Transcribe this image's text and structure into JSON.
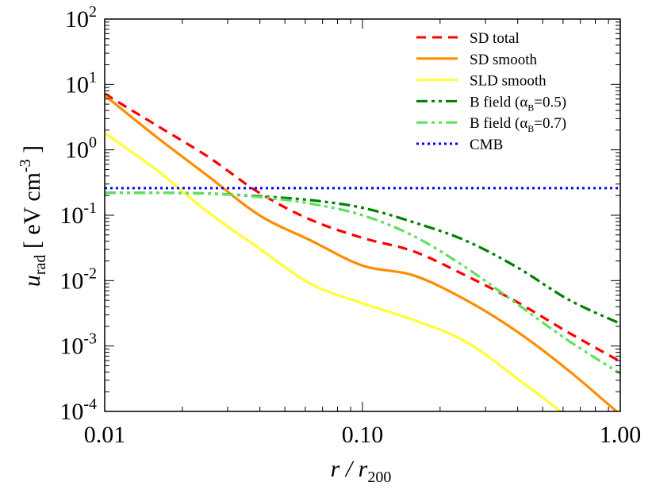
{
  "chart_data": {
    "type": "line",
    "xlabel": {
      "main": "r / r",
      "sub": "200"
    },
    "ylabel": {
      "main": "u",
      "sub": "rad",
      "rest": " [ eV cm",
      "sup": "-3",
      "end": " ]"
    },
    "xscale": "log",
    "yscale": "log",
    "xlim": [
      0.01,
      1.0
    ],
    "ylim": [
      0.0001,
      100
    ],
    "grid": false,
    "legend_position": "top-right",
    "x_tick_labels": [
      "0.01",
      "0.10",
      "1.00"
    ],
    "x_ticks": [
      0.01,
      0.1,
      1.0
    ],
    "y_ticks": [
      {
        "value": 100,
        "base": "10",
        "exp": "2"
      },
      {
        "value": 10,
        "base": "10",
        "exp": "1"
      },
      {
        "value": 1,
        "base": "10",
        "exp": "0"
      },
      {
        "value": 0.1,
        "base": "10",
        "exp": "-1"
      },
      {
        "value": 0.01,
        "base": "10",
        "exp": "-2"
      },
      {
        "value": 0.001,
        "base": "10",
        "exp": "-3"
      },
      {
        "value": 0.0001,
        "base": "10",
        "exp": "-4"
      }
    ],
    "x": [
      0.01,
      0.0158,
      0.0251,
      0.0398,
      0.0631,
      0.1,
      0.158,
      0.251,
      0.398,
      0.631,
      1.0
    ],
    "series": [
      {
        "name": "SD total",
        "label": {
          "pre": "SD total"
        },
        "color": "#ff0000",
        "style": "dashed",
        "values": [
          7.2,
          2.4,
          0.79,
          0.22,
          0.085,
          0.045,
          0.028,
          0.012,
          0.0047,
          0.0016,
          0.00058
        ]
      },
      {
        "name": "SD smooth",
        "label": {
          "pre": "SD smooth"
        },
        "color": "#ff8c00",
        "style": "solid",
        "values": [
          6.8,
          1.6,
          0.4,
          0.1,
          0.041,
          0.017,
          0.012,
          0.0051,
          0.00166,
          0.00042,
          8.9e-05
        ]
      },
      {
        "name": "SLD smooth",
        "label": {
          "pre": "SLD smooth"
        },
        "color": "#ffff33",
        "style": "solid",
        "values": [
          1.8,
          0.5,
          0.112,
          0.031,
          0.0089,
          0.0045,
          0.0025,
          0.00117,
          0.00032,
          8e-05,
          null
        ]
      },
      {
        "name": "B field (αB=0.5)",
        "label": {
          "pre": "B field (α",
          "sub": "B",
          "post": "=0.5)"
        },
        "color": "#007f00",
        "style": "dash-dot-dot",
        "values": [
          0.22,
          0.22,
          0.215,
          0.195,
          0.17,
          0.13,
          0.078,
          0.041,
          0.016,
          0.0051,
          0.0022
        ]
      },
      {
        "name": "B field (αB=0.7)",
        "label": {
          "pre": "B field (α",
          "sub": "B",
          "post": "=0.7)"
        },
        "color": "#5ee05e",
        "style": "dash-dot-dot",
        "values": [
          0.22,
          0.22,
          0.215,
          0.19,
          0.15,
          0.1,
          0.048,
          0.016,
          0.0044,
          0.0012,
          0.00038
        ]
      },
      {
        "name": "CMB",
        "label": {
          "pre": "CMB"
        },
        "color": "#0000ff",
        "style": "dotted",
        "values": [
          0.26,
          0.26,
          0.26,
          0.26,
          0.26,
          0.26,
          0.26,
          0.26,
          0.26,
          0.26,
          0.26
        ]
      }
    ]
  }
}
